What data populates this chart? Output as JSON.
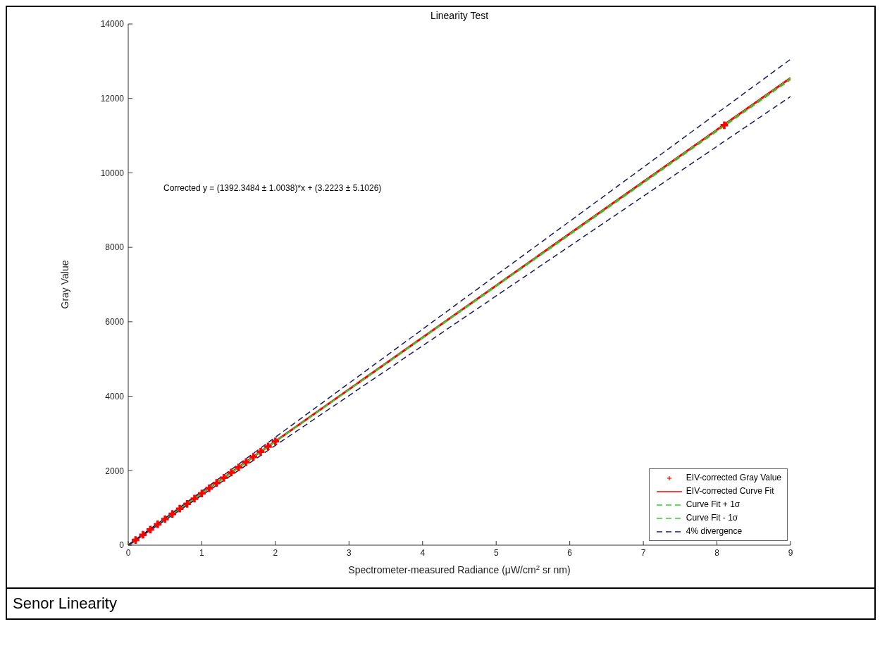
{
  "chart_data": {
    "type": "scatter",
    "title": "Linearity Test",
    "xlabel": "Spectrometer-measured Radiance (μW/cm$^{2}$ sr nm)",
    "ylabel": "Gray Value",
    "xlim": [
      0,
      9
    ],
    "xticks": [
      0,
      1,
      2,
      3,
      4,
      5,
      6,
      7,
      8,
      9
    ],
    "ylim": [
      0,
      14000
    ],
    "yticks": [
      0,
      2000,
      4000,
      6000,
      8000,
      10000,
      12000,
      14000
    ],
    "grid": false,
    "legend": "bottom right",
    "annotations": [
      "Corrected y = (1392.3484 ± 1.0038)*x + (3.2223 ± 5.1026)",
      "Senor Linearity"
    ],
    "series": [
      {
        "name": "EIV-corrected Gray Value",
        "marker": "cross",
        "color": "#ff0000",
        "x": [
          0.1,
          0.2,
          0.3,
          0.4,
          0.5,
          0.6,
          0.7,
          0.8,
          0.9,
          1.0,
          1.1,
          1.2,
          1.3,
          1.4,
          1.5,
          1.6,
          1.7,
          1.8,
          1.9,
          2.0,
          8.1
        ],
        "values": [
          140,
          280,
          420,
          560,
          700,
          840,
          980,
          1110,
          1250,
          1390,
          1530,
          1670,
          1810,
          1950,
          2090,
          2230,
          2370,
          2510,
          2650,
          2790,
          11280
        ]
      },
      {
        "name": "EIV-corrected Curve Fit",
        "type": "line",
        "marker": "none",
        "line_style": "solid",
        "color": "#ff0000",
        "x": [
          0,
          9
        ],
        "values": [
          0,
          12550
        ]
      },
      {
        "name": "Curve Fit + 1σ",
        "type": "line",
        "marker": "none",
        "line_style": "dashed",
        "color": "#33cc33",
        "x": [
          0,
          9
        ],
        "values": [
          0,
          12550
        ]
      },
      {
        "name": "Curve Fit - 1σ",
        "type": "line",
        "marker": "none",
        "line_style": "dashed",
        "color": "#33cc33",
        "x": [
          0,
          9
        ],
        "values": [
          0,
          12500
        ]
      },
      {
        "name": "4% divergence",
        "type": "line",
        "marker": "none",
        "line_style": "dashed",
        "color": "#1a1a5e",
        "x": [
          0,
          9
        ],
        "values": [
          0,
          13050
        ]
      },
      {
        "type": "line",
        "marker": "none",
        "line_style": "dashed",
        "color": "#1a1a5e",
        "x": [
          0,
          9
        ],
        "values": [
          0,
          12050
        ]
      }
    ]
  }
}
